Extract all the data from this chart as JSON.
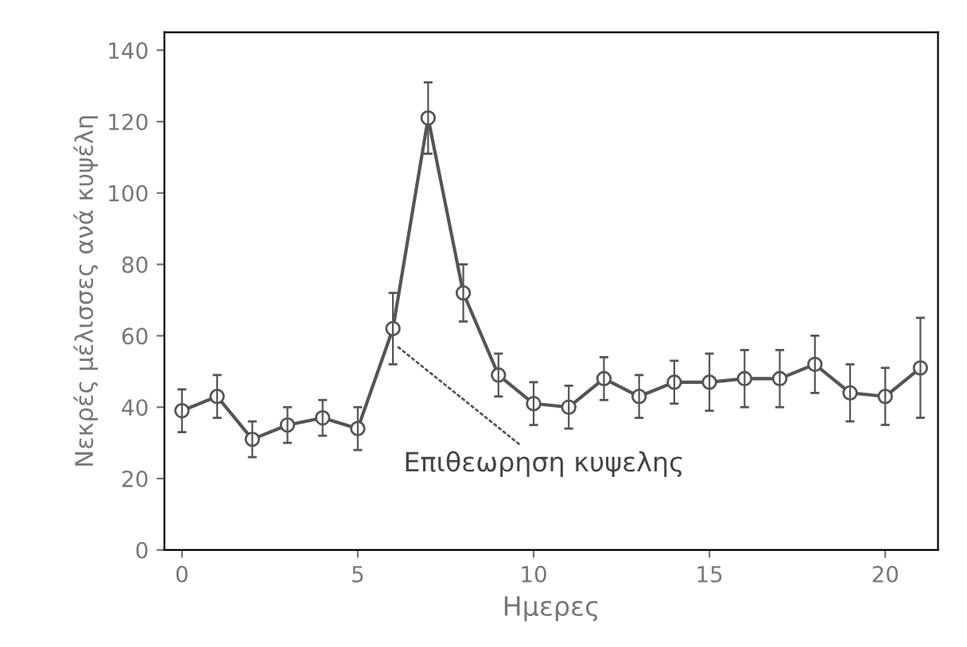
{
  "chart_data": {
    "type": "line",
    "xlabel": "Ημερες",
    "ylabel": "Νεκρές μέλισσες ανά κυψέλη",
    "x": [
      0,
      1,
      2,
      3,
      4,
      5,
      6,
      7,
      8,
      9,
      10,
      11,
      12,
      13,
      14,
      15,
      16,
      17,
      18,
      19,
      20,
      21
    ],
    "series": [
      {
        "color": "#555555",
        "values": [
          39,
          43,
          31,
          35,
          37,
          34,
          62,
          121,
          72,
          49,
          41,
          40,
          48,
          43,
          47,
          47,
          48,
          48,
          52,
          44,
          43,
          51
        ],
        "errors": [
          6,
          6,
          5,
          5,
          5,
          6,
          10,
          10,
          8,
          6,
          6,
          6,
          6,
          6,
          6,
          8,
          8,
          8,
          8,
          8,
          8,
          14
        ]
      }
    ],
    "marker": "circle",
    "xlim": [
      -0.5,
      21.5
    ],
    "ylim": [
      0,
      145
    ],
    "xticks": [
      0,
      5,
      10,
      15,
      20
    ],
    "yticks": [
      0,
      20,
      40,
      60,
      80,
      100,
      120,
      140
    ],
    "grid": false,
    "annotations": [
      {
        "text": "Επιθεωρηση κυψελης",
        "x": 6,
        "y": 58
      }
    ]
  }
}
